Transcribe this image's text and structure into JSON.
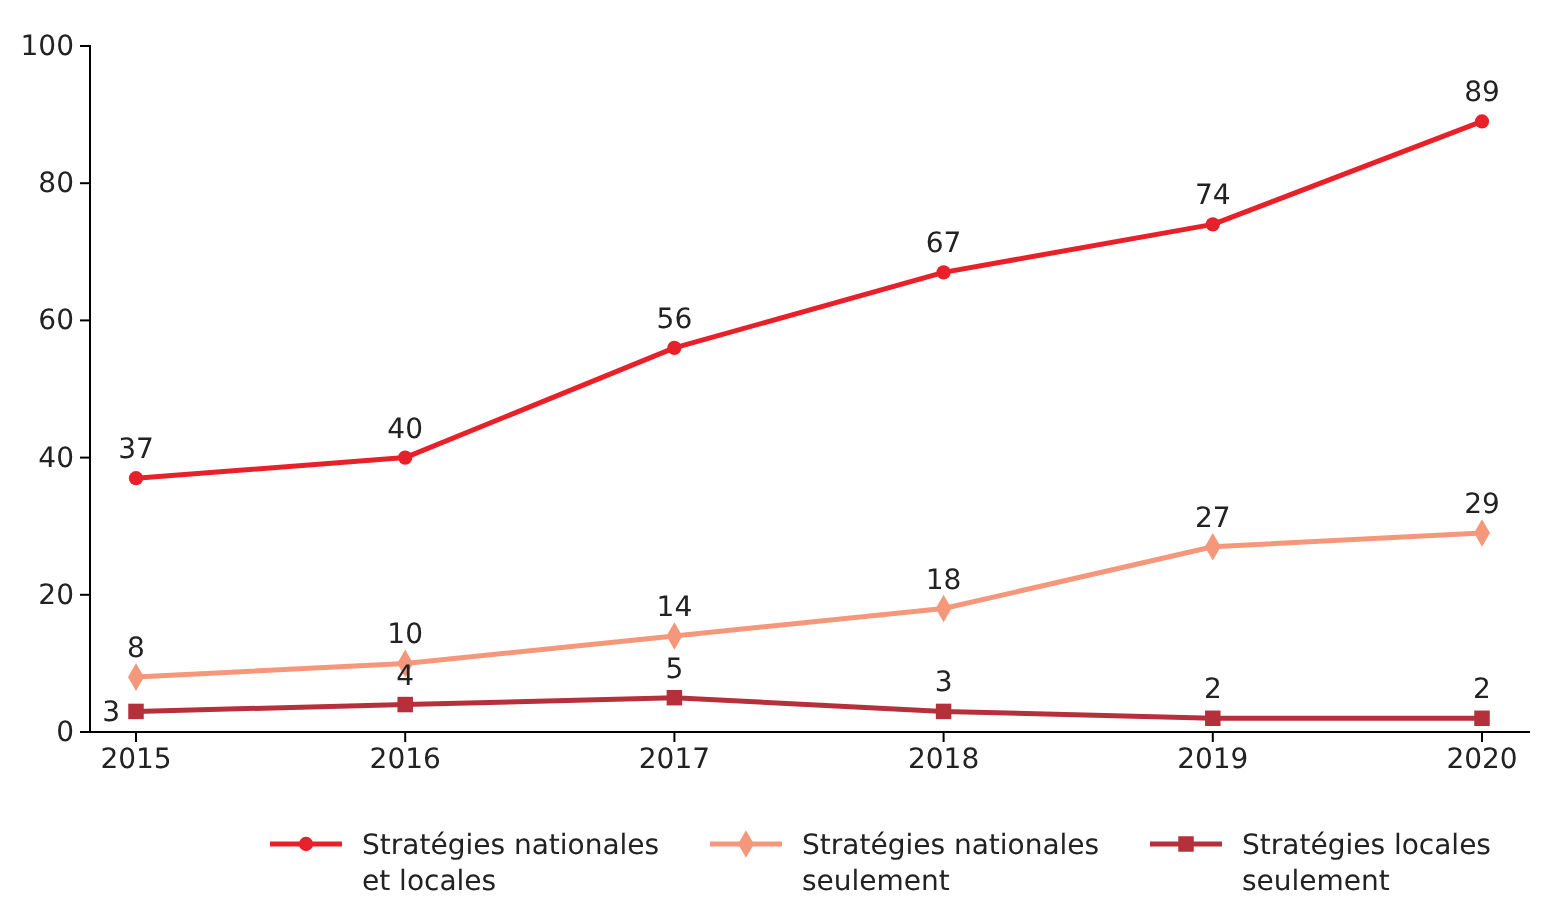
{
  "chart_data": {
    "type": "line",
    "categories": [
      "2015",
      "2016",
      "2017",
      "2018",
      "2019",
      "2020"
    ],
    "ylim": [
      0,
      100
    ],
    "yticks": [
      0,
      20,
      40,
      60,
      80,
      100
    ],
    "grid": false,
    "legend": "bottom",
    "data_labels": true,
    "line_style": "solid",
    "series": [
      {
        "name": "Stratégies nationales et locales",
        "color": "#e8202a",
        "marker": "circle",
        "values": [
          37,
          40,
          56,
          67,
          74,
          89
        ]
      },
      {
        "name": "Stratégies nationales seulement",
        "color": "#f4977a",
        "marker": "diamond",
        "values": [
          8,
          10,
          14,
          18,
          27,
          29
        ]
      },
      {
        "name": "Stratégies locales seulement",
        "color": "#b5303a",
        "marker": "square",
        "values": [
          3,
          4,
          5,
          3,
          2,
          2
        ]
      }
    ]
  }
}
